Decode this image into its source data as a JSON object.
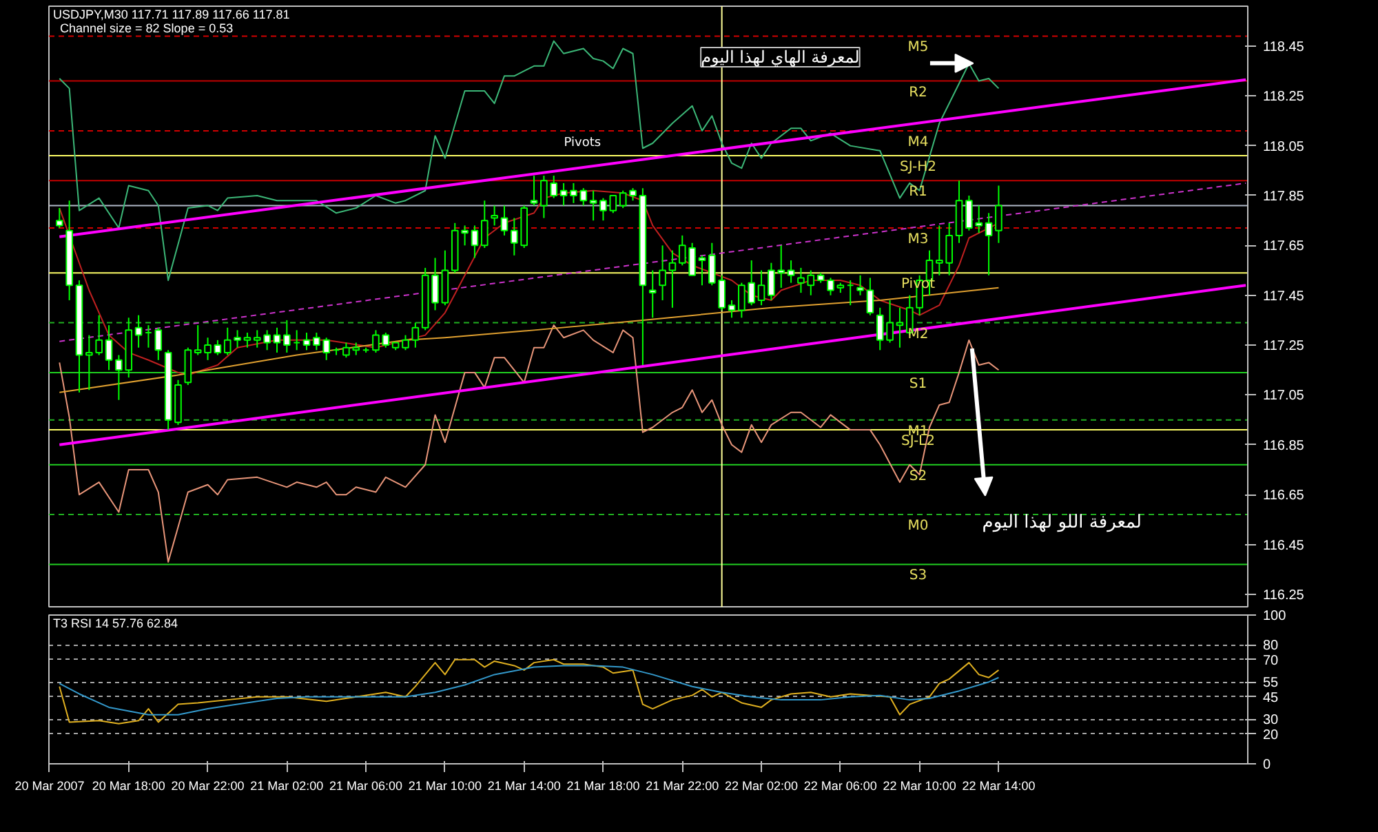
{
  "chart_data": [
    {
      "type": "candlestick",
      "title": "USDJPY,M30  117.71 117.89 117.66 117.81",
      "subtitle": "Channel size = 82 Slope = 0.53",
      "x": [
        "2007-03-20T14:30",
        "2007-03-20T15:00",
        "2007-03-20T15:30",
        "2007-03-20T16:00",
        "2007-03-20T16:30",
        "2007-03-20T17:00",
        "2007-03-20T17:30",
        "2007-03-20T18:00",
        "2007-03-20T18:30",
        "2007-03-20T19:00",
        "2007-03-20T19:30",
        "2007-03-20T20:00",
        "2007-03-20T20:30",
        "2007-03-20T21:00",
        "2007-03-20T21:30",
        "2007-03-20T22:00",
        "2007-03-20T22:30",
        "2007-03-20T23:00",
        "2007-03-20T23:30",
        "2007-03-21T00:00",
        "2007-03-21T00:30",
        "2007-03-21T01:00",
        "2007-03-21T01:30",
        "2007-03-21T02:00",
        "2007-03-21T02:30",
        "2007-03-21T03:00",
        "2007-03-21T03:30",
        "2007-03-21T04:00",
        "2007-03-21T04:30",
        "2007-03-21T05:00",
        "2007-03-21T05:30",
        "2007-03-21T06:00",
        "2007-03-21T06:30",
        "2007-03-21T07:00",
        "2007-03-21T07:30",
        "2007-03-21T08:00",
        "2007-03-21T08:30",
        "2007-03-21T09:00",
        "2007-03-21T09:30",
        "2007-03-21T10:00",
        "2007-03-21T10:30",
        "2007-03-21T11:00",
        "2007-03-21T11:30",
        "2007-03-21T12:00",
        "2007-03-21T12:30",
        "2007-03-21T13:00",
        "2007-03-21T13:30",
        "2007-03-21T14:00",
        "2007-03-21T14:30",
        "2007-03-21T15:00",
        "2007-03-21T15:30",
        "2007-03-21T16:00",
        "2007-03-21T16:30",
        "2007-03-21T17:00",
        "2007-03-21T17:30",
        "2007-03-21T18:00",
        "2007-03-21T18:30",
        "2007-03-21T19:00",
        "2007-03-21T19:30",
        "2007-03-21T20:00",
        "2007-03-21T20:30",
        "2007-03-21T21:00",
        "2007-03-21T21:30",
        "2007-03-21T22:00",
        "2007-03-21T22:30",
        "2007-03-21T23:00",
        "2007-03-21T23:30",
        "2007-03-22T00:00",
        "2007-03-22T00:30",
        "2007-03-22T01:00",
        "2007-03-22T01:30",
        "2007-03-22T02:00",
        "2007-03-22T02:30",
        "2007-03-22T03:00",
        "2007-03-22T03:30",
        "2007-03-22T04:00",
        "2007-03-22T04:30",
        "2007-03-22T05:00",
        "2007-03-22T05:30",
        "2007-03-22T06:00",
        "2007-03-22T06:30",
        "2007-03-22T07:00",
        "2007-03-22T07:30",
        "2007-03-22T08:00",
        "2007-03-22T08:30",
        "2007-03-22T09:00",
        "2007-03-22T09:30",
        "2007-03-22T10:00",
        "2007-03-22T10:30",
        "2007-03-22T11:00",
        "2007-03-22T11:30",
        "2007-03-22T12:00",
        "2007-03-22T12:30",
        "2007-03-22T13:00",
        "2007-03-22T13:30",
        "2007-03-22T14:00"
      ],
      "ohlc": [
        [
          117.75,
          117.8,
          117.72,
          117.73
        ],
        [
          117.71,
          117.83,
          117.43,
          117.49
        ],
        [
          117.49,
          117.51,
          117.06,
          117.21
        ],
        [
          117.21,
          117.29,
          117.07,
          117.22
        ],
        [
          117.22,
          117.37,
          117.21,
          117.27
        ],
        [
          117.27,
          117.33,
          117.15,
          117.19
        ],
        [
          117.19,
          117.21,
          117.03,
          117.15
        ],
        [
          117.15,
          117.36,
          117.12,
          117.31
        ],
        [
          117.32,
          117.37,
          117.24,
          117.29
        ],
        [
          117.3,
          117.33,
          117.24,
          117.3
        ],
        [
          117.31,
          117.32,
          117.19,
          117.23
        ],
        [
          117.22,
          117.23,
          116.91,
          116.95
        ],
        [
          116.94,
          117.11,
          116.93,
          117.09
        ],
        [
          117.1,
          117.24,
          117.09,
          117.23
        ],
        [
          117.22,
          117.33,
          117.21,
          117.23
        ],
        [
          117.22,
          117.28,
          117.19,
          117.25
        ],
        [
          117.25,
          117.27,
          117.21,
          117.22
        ],
        [
          117.22,
          117.32,
          117.21,
          117.27
        ],
        [
          117.28,
          117.31,
          117.24,
          117.27
        ],
        [
          117.27,
          117.3,
          117.24,
          117.28
        ],
        [
          117.27,
          117.31,
          117.24,
          117.28
        ],
        [
          117.29,
          117.31,
          117.23,
          117.26
        ],
        [
          117.29,
          117.32,
          117.22,
          117.26
        ],
        [
          117.29,
          117.35,
          117.22,
          117.25
        ],
        [
          117.26,
          117.31,
          117.23,
          117.26
        ],
        [
          117.27,
          117.3,
          117.23,
          117.25
        ],
        [
          117.28,
          117.3,
          117.23,
          117.25
        ],
        [
          117.27,
          117.28,
          117.19,
          117.22
        ],
        [
          117.23,
          117.24,
          117.21,
          117.23
        ],
        [
          117.21,
          117.26,
          117.2,
          117.24
        ],
        [
          117.23,
          117.26,
          117.21,
          117.24
        ],
        [
          117.23,
          117.24,
          117.22,
          117.23
        ],
        [
          117.23,
          117.31,
          117.22,
          117.29
        ],
        [
          117.29,
          117.3,
          117.24,
          117.25
        ],
        [
          117.24,
          117.26,
          117.23,
          117.26
        ],
        [
          117.24,
          117.29,
          117.23,
          117.27
        ],
        [
          117.27,
          117.34,
          117.24,
          117.32
        ],
        [
          117.32,
          117.56,
          117.31,
          117.53
        ],
        [
          117.53,
          117.6,
          117.39,
          117.42
        ],
        [
          117.42,
          117.63,
          117.41,
          117.55
        ],
        [
          117.55,
          117.74,
          117.54,
          117.71
        ],
        [
          117.71,
          117.73,
          117.65,
          117.7
        ],
        [
          117.71,
          117.73,
          117.6,
          117.65
        ],
        [
          117.65,
          117.83,
          117.64,
          117.75
        ],
        [
          117.76,
          117.81,
          117.73,
          117.77
        ],
        [
          117.76,
          117.81,
          117.69,
          117.71
        ],
        [
          117.71,
          117.76,
          117.61,
          117.66
        ],
        [
          117.65,
          117.81,
          117.64,
          117.8
        ],
        [
          117.83,
          117.93,
          117.81,
          117.82
        ],
        [
          117.81,
          117.93,
          117.76,
          117.91
        ],
        [
          117.9,
          117.93,
          117.84,
          117.85
        ],
        [
          117.87,
          117.9,
          117.81,
          117.85
        ],
        [
          117.87,
          117.9,
          117.82,
          117.85
        ],
        [
          117.87,
          117.88,
          117.81,
          117.83
        ],
        [
          117.83,
          117.87,
          117.75,
          117.82
        ],
        [
          117.83,
          117.84,
          117.75,
          117.79
        ],
        [
          117.79,
          117.85,
          117.78,
          117.85
        ],
        [
          117.81,
          117.87,
          117.8,
          117.86
        ],
        [
          117.87,
          117.88,
          117.83,
          117.85
        ],
        [
          117.85,
          117.88,
          117.17,
          117.49
        ],
        [
          117.47,
          117.55,
          117.36,
          117.46
        ],
        [
          117.49,
          117.65,
          117.43,
          117.55
        ],
        [
          117.55,
          117.63,
          117.4,
          117.58
        ],
        [
          117.58,
          117.69,
          117.57,
          117.65
        ],
        [
          117.64,
          117.66,
          117.53,
          117.53
        ],
        [
          117.6,
          117.61,
          117.49,
          117.59
        ],
        [
          117.61,
          117.66,
          117.49,
          117.5
        ],
        [
          117.51,
          117.53,
          117.39,
          117.4
        ],
        [
          117.41,
          117.43,
          117.36,
          117.39
        ],
        [
          117.39,
          117.5,
          117.36,
          117.49
        ],
        [
          117.5,
          117.59,
          117.41,
          117.42
        ],
        [
          117.43,
          117.55,
          117.41,
          117.49
        ],
        [
          117.55,
          117.58,
          117.43,
          117.45
        ],
        [
          117.55,
          117.65,
          117.48,
          117.54
        ],
        [
          117.55,
          117.59,
          117.5,
          117.53
        ],
        [
          117.5,
          117.56,
          117.46,
          117.52
        ],
        [
          117.49,
          117.55,
          117.45,
          117.53
        ],
        [
          117.53,
          117.54,
          117.5,
          117.51
        ],
        [
          117.51,
          117.52,
          117.45,
          117.47
        ],
        [
          117.48,
          117.5,
          117.46,
          117.49
        ],
        [
          117.49,
          117.51,
          117.41,
          117.49
        ],
        [
          117.48,
          117.53,
          117.45,
          117.47
        ],
        [
          117.47,
          117.52,
          117.37,
          117.38
        ],
        [
          117.37,
          117.4,
          117.23,
          117.27
        ],
        [
          117.27,
          117.43,
          117.26,
          117.34
        ],
        [
          117.33,
          117.4,
          117.24,
          117.34
        ],
        [
          117.3,
          117.45,
          117.29,
          117.4
        ],
        [
          117.4,
          117.53,
          117.37,
          117.51
        ],
        [
          117.51,
          117.63,
          117.45,
          117.59
        ],
        [
          117.58,
          117.73,
          117.53,
          117.59
        ],
        [
          117.58,
          117.74,
          117.53,
          117.69
        ],
        [
          117.69,
          117.91,
          117.66,
          117.83
        ],
        [
          117.83,
          117.85,
          117.71,
          117.72
        ],
        [
          117.74,
          117.81,
          117.7,
          117.73
        ],
        [
          117.74,
          117.78,
          117.53,
          117.69
        ],
        [
          117.71,
          117.89,
          117.66,
          117.81
        ]
      ],
      "series": [
        {
          "type": "line",
          "color": "#3cb878",
          "x": [
            "2007-03-20T14:30",
            "2007-03-20T15:00",
            "2007-03-20T15:30",
            "2007-03-20T16:30",
            "2007-03-20T17:30",
            "2007-03-20T18:00",
            "2007-03-20T19:00",
            "2007-03-20T19:30",
            "2007-03-20T20:00",
            "2007-03-20T21:00",
            "2007-03-20T22:00",
            "2007-03-20T22:30",
            "2007-03-20T23:00",
            "2007-03-21T00:30",
            "2007-03-21T01:30",
            "2007-03-21T02:30",
            "2007-03-21T03:30",
            "2007-03-21T04:30",
            "2007-03-21T05:30",
            "2007-03-21T06:30",
            "2007-03-21T07:30",
            "2007-03-21T08:00",
            "2007-03-21T09:00",
            "2007-03-21T09:30",
            "2007-03-21T10:00",
            "2007-03-21T11:00",
            "2007-03-21T12:00",
            "2007-03-21T12:30",
            "2007-03-21T13:00",
            "2007-03-21T13:30",
            "2007-03-21T14:30",
            "2007-03-21T15:00",
            "2007-03-21T15:30",
            "2007-03-21T16:00",
            "2007-03-21T17:00",
            "2007-03-21T17:30",
            "2007-03-21T18:00",
            "2007-03-21T18:30",
            "2007-03-21T19:00",
            "2007-03-21T19:30",
            "2007-03-21T20:00",
            "2007-03-21T20:30",
            "2007-03-21T21:30",
            "2007-03-21T22:30",
            "2007-03-21T23:00",
            "2007-03-21T23:30",
            "2007-03-22T00:00",
            "2007-03-22T00:30",
            "2007-03-22T01:00",
            "2007-03-22T01:30",
            "2007-03-22T02:00",
            "2007-03-22T02:30",
            "2007-03-22T03:30",
            "2007-03-22T04:00",
            "2007-03-22T04:30",
            "2007-03-22T05:30",
            "2007-03-22T06:30",
            "2007-03-22T08:00",
            "2007-03-22T09:00",
            "2007-03-22T09:30",
            "2007-03-22T10:00",
            "2007-03-22T11:00",
            "2007-03-22T12:30",
            "2007-03-22T13:00",
            "2007-03-22T13:30",
            "2007-03-22T14:00"
          ],
          "values": [
            118.32,
            118.28,
            117.79,
            117.84,
            117.72,
            117.89,
            117.87,
            117.81,
            117.51,
            117.8,
            117.81,
            117.79,
            117.84,
            117.85,
            117.83,
            117.83,
            117.83,
            117.78,
            117.8,
            117.85,
            117.82,
            117.83,
            117.87,
            118.09,
            118.0,
            118.27,
            118.27,
            118.22,
            118.33,
            118.33,
            118.37,
            118.37,
            118.47,
            118.42,
            118.44,
            118.4,
            118.39,
            118.36,
            118.44,
            118.42,
            118.04,
            118.06,
            118.14,
            118.21,
            118.11,
            118.17,
            118.06,
            117.98,
            117.96,
            118.06,
            118.0,
            118.06,
            118.12,
            118.12,
            118.07,
            118.1,
            118.05,
            118.03,
            117.84,
            117.9,
            117.87,
            118.14,
            118.38,
            118.31,
            118.32,
            118.28
          ]
        },
        {
          "type": "line",
          "color": "#e9967a",
          "x": [
            "2007-03-20T14:30",
            "2007-03-20T15:00",
            "2007-03-20T15:30",
            "2007-03-20T16:30",
            "2007-03-20T17:30",
            "2007-03-20T18:00",
            "2007-03-20T19:00",
            "2007-03-20T19:30",
            "2007-03-20T20:00",
            "2007-03-20T21:00",
            "2007-03-20T22:00",
            "2007-03-20T22:30",
            "2007-03-20T23:00",
            "2007-03-21T00:30",
            "2007-03-21T02:00",
            "2007-03-21T02:30",
            "2007-03-21T03:30",
            "2007-03-21T04:00",
            "2007-03-21T04:30",
            "2007-03-21T05:00",
            "2007-03-21T05:30",
            "2007-03-21T06:30",
            "2007-03-21T07:00",
            "2007-03-21T08:00",
            "2007-03-21T09:00",
            "2007-03-21T09:30",
            "2007-03-21T10:00",
            "2007-03-21T11:00",
            "2007-03-21T11:30",
            "2007-03-21T12:00",
            "2007-03-21T12:30",
            "2007-03-21T13:00",
            "2007-03-21T14:00",
            "2007-03-21T14:30",
            "2007-03-21T15:00",
            "2007-03-21T15:30",
            "2007-03-21T16:00",
            "2007-03-21T17:00",
            "2007-03-21T17:30",
            "2007-03-21T18:30",
            "2007-03-21T19:00",
            "2007-03-21T19:30",
            "2007-03-21T20:00",
            "2007-03-21T20:30",
            "2007-03-21T21:30",
            "2007-03-21T22:00",
            "2007-03-21T22:30",
            "2007-03-21T23:00",
            "2007-03-21T23:30",
            "2007-03-22T00:00",
            "2007-03-22T00:30",
            "2007-03-22T01:00",
            "2007-03-22T01:30",
            "2007-03-22T02:00",
            "2007-03-22T02:30",
            "2007-03-22T03:30",
            "2007-03-22T04:00",
            "2007-03-22T05:00",
            "2007-03-22T05:30",
            "2007-03-22T06:30",
            "2007-03-22T07:30",
            "2007-03-22T08:00",
            "2007-03-22T09:00",
            "2007-03-22T09:30",
            "2007-03-22T10:00",
            "2007-03-22T10:30",
            "2007-03-22T11:00",
            "2007-03-22T11:30",
            "2007-03-22T12:00",
            "2007-03-22T12:30",
            "2007-03-22T13:00",
            "2007-03-22T13:30",
            "2007-03-22T14:00"
          ],
          "values": [
            117.18,
            116.96,
            116.65,
            116.7,
            116.58,
            116.75,
            116.75,
            116.66,
            116.38,
            116.66,
            116.69,
            116.65,
            116.71,
            116.72,
            116.68,
            116.7,
            116.68,
            116.7,
            116.65,
            116.65,
            116.68,
            116.66,
            116.72,
            116.68,
            116.77,
            116.97,
            116.86,
            117.14,
            117.14,
            117.08,
            117.2,
            117.2,
            117.1,
            117.24,
            117.24,
            117.33,
            117.28,
            117.31,
            117.27,
            117.22,
            117.31,
            117.28,
            116.9,
            116.92,
            116.98,
            117.0,
            117.07,
            116.98,
            117.03,
            116.93,
            116.85,
            116.82,
            116.93,
            116.86,
            116.93,
            116.98,
            116.98,
            116.92,
            116.97,
            116.91,
            116.91,
            116.85,
            116.7,
            116.77,
            116.73,
            116.92,
            117.01,
            117.02,
            117.14,
            117.27,
            117.17,
            117.18,
            117.15
          ]
        },
        {
          "type": "line",
          "color": "#c02020",
          "x": [
            "2007-03-20T14:30",
            "2007-03-20T16:00",
            "2007-03-20T17:00",
            "2007-03-20T18:00",
            "2007-03-20T19:00",
            "2007-03-20T20:30",
            "2007-03-20T21:00",
            "2007-03-20T22:30",
            "2007-03-20T23:30",
            "2007-03-21T01:30",
            "2007-03-21T04:00",
            "2007-03-21T06:30",
            "2007-03-21T08:00",
            "2007-03-21T09:00",
            "2007-03-21T10:00",
            "2007-03-21T11:00",
            "2007-03-21T12:00",
            "2007-03-21T13:00",
            "2007-03-21T14:30",
            "2007-03-21T15:00",
            "2007-03-21T16:00",
            "2007-03-21T17:30",
            "2007-03-21T19:00",
            "2007-03-21T20:00",
            "2007-03-21T20:30",
            "2007-03-21T21:30",
            "2007-03-21T22:30",
            "2007-03-21T23:30",
            "2007-03-22T00:30",
            "2007-03-22T01:30",
            "2007-03-22T02:30",
            "2007-03-22T03:00",
            "2007-03-22T04:30",
            "2007-03-22T06:00",
            "2007-03-22T07:00",
            "2007-03-22T08:00",
            "2007-03-22T09:30",
            "2007-03-22T10:00",
            "2007-03-22T11:00",
            "2007-03-22T12:00",
            "2007-03-22T12:30",
            "2007-03-22T13:30",
            "2007-03-22T14:00"
          ],
          "values": [
            117.8,
            117.47,
            117.29,
            117.22,
            117.19,
            117.14,
            117.13,
            117.17,
            117.24,
            117.27,
            117.27,
            117.24,
            117.27,
            117.29,
            117.38,
            117.53,
            117.68,
            117.74,
            117.78,
            117.84,
            117.86,
            117.87,
            117.86,
            117.83,
            117.73,
            117.62,
            117.57,
            117.54,
            117.51,
            117.45,
            117.43,
            117.47,
            117.51,
            117.51,
            117.49,
            117.43,
            117.39,
            117.37,
            117.41,
            117.57,
            117.68,
            117.72,
            117.74
          ]
        },
        {
          "type": "line",
          "color": "#e0a030",
          "x": [
            "2007-03-20T14:30",
            "2007-03-20T20:30",
            "2007-03-21T02:30",
            "2007-03-21T08:00",
            "2007-03-21T10:00",
            "2007-03-21T14:30",
            "2007-03-21T20:00",
            "2007-03-22T02:30",
            "2007-03-22T08:00",
            "2007-03-22T14:00"
          ],
          "values": [
            117.06,
            117.13,
            117.21,
            117.27,
            117.28,
            117.31,
            117.35,
            117.4,
            117.43,
            117.48
          ]
        },
        {
          "type": "line",
          "color": "#ff00ff",
          "x": [
            "2007-03-20T14:30",
            "2007-03-23T02:30"
          ],
          "values": [
            117.685,
            118.315
          ]
        },
        {
          "type": "line",
          "color": "#cc33cc",
          "line_style": "dashed",
          "x": [
            "2007-03-20T14:30",
            "2007-03-23T02:30"
          ],
          "values": [
            117.265,
            117.9
          ]
        },
        {
          "type": "line",
          "color": "#ff00ff",
          "x": [
            "2007-03-20T14:30",
            "2007-03-23T02:30"
          ],
          "values": [
            116.85,
            117.49
          ]
        }
      ],
      "xlim": [
        "2007-03-20T13:58",
        "2007-03-23T02:36"
      ],
      "ylim": [
        116.2,
        118.61
      ],
      "yticks": [
        116.25,
        116.45,
        116.65,
        116.85,
        117.05,
        117.25,
        117.45,
        117.65,
        117.85,
        118.05,
        118.25,
        118.45
      ],
      "tick_labels": "y",
      "ref_lines": [
        {
          "axis": "y",
          "value": 118.49,
          "label": "M5",
          "color": "#d00000",
          "line_style": "dashed"
        },
        {
          "axis": "y",
          "value": 118.31,
          "label": "R2",
          "color": "#c00000",
          "line_style": "solid"
        },
        {
          "axis": "y",
          "value": 118.11,
          "label": "M4",
          "color": "#d00000",
          "line_style": "dashed"
        },
        {
          "axis": "y",
          "value": 118.01,
          "label": "SJ-H2",
          "color": "#ffff66",
          "line_style": "solid"
        },
        {
          "axis": "y",
          "value": 117.91,
          "label": "R1",
          "color": "#c00000",
          "line_style": "solid"
        },
        {
          "axis": "y",
          "value": 117.81,
          "label": null,
          "color": "#b0b8c8",
          "line_style": "solid"
        },
        {
          "axis": "y",
          "value": 117.72,
          "label": "M3",
          "color": "#d00000",
          "line_style": "dashed"
        },
        {
          "axis": "y",
          "value": 117.54,
          "label": "Pivot",
          "color": "#ffff66",
          "line_style": "solid"
        },
        {
          "axis": "y",
          "value": 117.34,
          "label": "M2",
          "color": "#20b020",
          "line_style": "dashed"
        },
        {
          "axis": "y",
          "value": 117.14,
          "label": "S1",
          "color": "#20d020",
          "line_style": "solid"
        },
        {
          "axis": "y",
          "value": 116.95,
          "label": "M1",
          "color": "#20b020",
          "line_style": "dashed"
        },
        {
          "axis": "y",
          "value": 116.91,
          "label": "SJ-L2",
          "color": "#ffff66",
          "line_style": "solid"
        },
        {
          "axis": "y",
          "value": 116.77,
          "label": "S2",
          "color": "#20d020",
          "line_style": "solid"
        },
        {
          "axis": "y",
          "value": 116.57,
          "label": "M0",
          "color": "#20b020",
          "line_style": "dashed"
        },
        {
          "axis": "y",
          "value": 116.37,
          "label": "S3",
          "color": "#20d020",
          "line_style": "solid"
        },
        {
          "axis": "x",
          "value": "2007-03-22T00:00",
          "label": null,
          "color": "#ffff99",
          "line_style": "solid"
        }
      ],
      "annotations": [
        "لمعرفة الهاي لهذا اليوم",
        "لمعرفة اللو لهذا اليوم",
        "Pivots"
      ]
    },
    {
      "type": "line",
      "title": "T3 RSI 14 57.76 62.84",
      "series": [
        {
          "color": "#e0b020",
          "x": [
            "2007-03-20T14:30",
            "2007-03-20T15:00",
            "2007-03-20T16:30",
            "2007-03-20T17:30",
            "2007-03-20T18:30",
            "2007-03-20T19:00",
            "2007-03-20T19:30",
            "2007-03-20T20:30",
            "2007-03-20T21:30",
            "2007-03-20T23:00",
            "2007-03-21T00:30",
            "2007-03-21T02:00",
            "2007-03-21T04:00",
            "2007-03-21T05:30",
            "2007-03-21T07:00",
            "2007-03-21T08:00",
            "2007-03-21T08:30",
            "2007-03-21T09:30",
            "2007-03-21T10:00",
            "2007-03-21T10:30",
            "2007-03-21T11:30",
            "2007-03-21T12:00",
            "2007-03-21T12:30",
            "2007-03-21T13:30",
            "2007-03-21T14:00",
            "2007-03-21T14:30",
            "2007-03-21T15:30",
            "2007-03-21T16:00",
            "2007-03-21T17:00",
            "2007-03-21T18:00",
            "2007-03-21T18:30",
            "2007-03-21T19:30",
            "2007-03-21T20:00",
            "2007-03-21T20:30",
            "2007-03-21T21:30",
            "2007-03-21T22:30",
            "2007-03-21T23:00",
            "2007-03-21T23:30",
            "2007-03-22T00:00",
            "2007-03-22T01:00",
            "2007-03-22T02:00",
            "2007-03-22T02:30",
            "2007-03-22T03:30",
            "2007-03-22T04:30",
            "2007-03-22T05:30",
            "2007-03-22T06:30",
            "2007-03-22T07:30",
            "2007-03-22T08:30",
            "2007-03-22T09:00",
            "2007-03-22T09:30",
            "2007-03-22T10:30",
            "2007-03-22T11:00",
            "2007-03-22T11:30",
            "2007-03-22T12:30",
            "2007-03-22T13:00",
            "2007-03-22T13:30",
            "2007-03-22T14:00"
          ],
          "values": [
            52,
            28,
            29,
            27,
            29,
            37,
            28,
            40,
            41,
            43,
            45,
            45,
            42,
            45,
            48,
            45,
            52,
            68,
            60,
            70,
            70,
            65,
            69,
            66,
            63,
            68,
            70,
            67,
            67,
            65,
            61,
            63,
            40,
            37,
            43,
            46,
            50,
            45,
            48,
            41,
            38,
            43,
            47,
            48,
            45,
            47,
            46,
            45,
            33,
            40,
            45,
            54,
            57,
            68,
            60,
            58,
            63
          ]
        },
        {
          "color": "#3399cc",
          "x": [
            "2007-03-20T14:30",
            "2007-03-20T15:30",
            "2007-03-20T17:00",
            "2007-03-20T19:00",
            "2007-03-20T20:30",
            "2007-03-20T22:00",
            "2007-03-20T23:30",
            "2007-03-21T01:30",
            "2007-03-21T03:00",
            "2007-03-21T04:30",
            "2007-03-21T06:00",
            "2007-03-21T08:00",
            "2007-03-21T09:30",
            "2007-03-21T11:00",
            "2007-03-21T12:30",
            "2007-03-21T14:30",
            "2007-03-21T16:00",
            "2007-03-21T17:30",
            "2007-03-21T19:00",
            "2007-03-21T20:30",
            "2007-03-21T22:30",
            "2007-03-22T00:00",
            "2007-03-22T01:30",
            "2007-03-22T03:00",
            "2007-03-22T05:00",
            "2007-03-22T06:30",
            "2007-03-22T08:00",
            "2007-03-22T09:30",
            "2007-03-22T10:30",
            "2007-03-22T12:00",
            "2007-03-22T13:30",
            "2007-03-22T14:00"
          ],
          "values": [
            54,
            47,
            38,
            33,
            33,
            37,
            40,
            44,
            45,
            45,
            45,
            45,
            48,
            53,
            60,
            65,
            66,
            66,
            65,
            60,
            52,
            48,
            45,
            43,
            43,
            45,
            46,
            43,
            44,
            49,
            55,
            58
          ]
        }
      ],
      "xlim": [
        "2007-03-20T13:58",
        "2007-03-23T02:36"
      ],
      "ylim": [
        0,
        100
      ],
      "xticks": [
        {
          "value": "2007-03-20T14:00",
          "label": "20 Mar 2007"
        },
        {
          "value": "2007-03-20T18:00",
          "label": "20 Mar 18:00"
        },
        {
          "value": "2007-03-20T22:00",
          "label": "20 Mar 22:00"
        },
        {
          "value": "2007-03-21T02:00",
          "label": "21 Mar 02:00"
        },
        {
          "value": "2007-03-21T06:00",
          "label": "21 Mar 06:00"
        },
        {
          "value": "2007-03-21T10:00",
          "label": "21 Mar 10:00"
        },
        {
          "value": "2007-03-21T14:00",
          "label": "21 Mar 14:00"
        },
        {
          "value": "2007-03-21T18:00",
          "label": "21 Mar 18:00"
        },
        {
          "value": "2007-03-21T22:00",
          "label": "21 Mar 22:00"
        },
        {
          "value": "2007-03-22T02:00",
          "label": "22 Mar 02:00"
        },
        {
          "value": "2007-03-22T06:00",
          "label": "22 Mar 06:00"
        },
        {
          "value": "2007-03-22T10:00",
          "label": "22 Mar 10:00"
        },
        {
          "value": "2007-03-22T14:00",
          "label": "22 Mar 14:00"
        }
      ],
      "yticks": [
        0,
        20,
        30,
        45,
        55,
        70,
        80,
        100
      ],
      "grid": "y"
    }
  ]
}
